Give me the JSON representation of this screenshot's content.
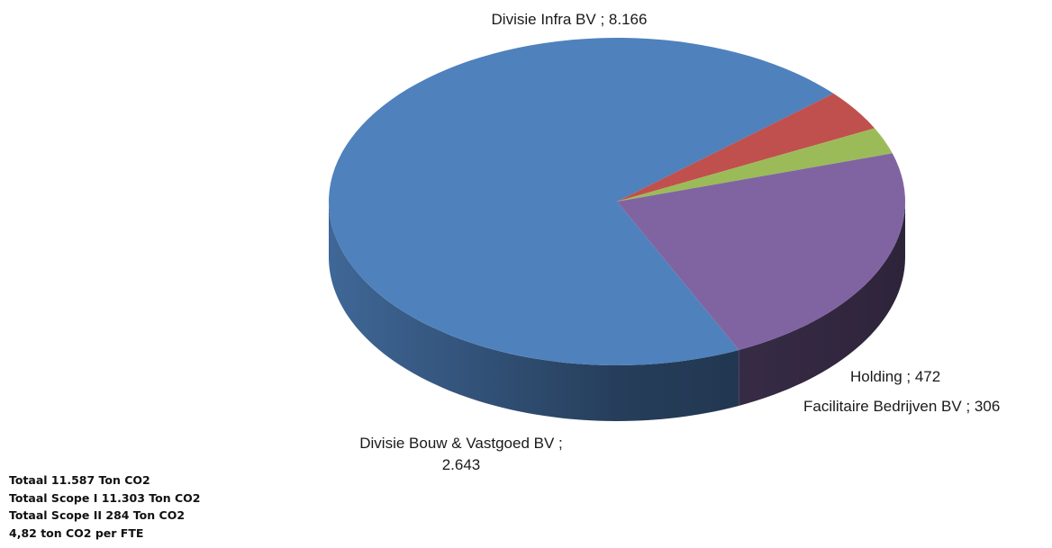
{
  "chart_data": {
    "type": "pie",
    "style": "3d",
    "title": "",
    "slices": [
      {
        "label": "Divisie Infra BV",
        "value": 8166,
        "display": "Divisie Infra BV ; 8.166",
        "color": "#4f81bd"
      },
      {
        "label": "Holding",
        "value": 472,
        "display": "Holding  ; 472",
        "color": "#c0504d"
      },
      {
        "label": "Facilitaire Bedrijven BV",
        "value": 306,
        "display": "Facilitaire Bedrijven BV ; 306",
        "color": "#9bbb59"
      },
      {
        "label": "Divisie Bouw & Vastgoed BV",
        "value": 2643,
        "display_lines": [
          "Divisie Bouw & Vastgoed BV ;",
          "2.643"
        ],
        "color": "#8064a2"
      }
    ]
  },
  "summary": {
    "lines": [
      "Totaal 11.587 Ton CO2",
      "Totaal Scope I 11.303 Ton CO2",
      "Totaal Scope II 284 Ton CO2",
      "4,82 ton CO2 per FTE"
    ]
  }
}
